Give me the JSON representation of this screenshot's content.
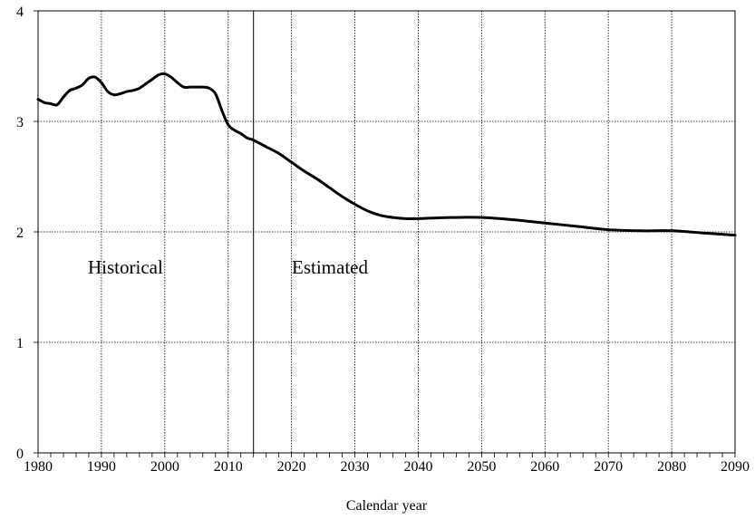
{
  "chart_data": {
    "type": "line",
    "xlabel": "Calendar year",
    "ylabel": "",
    "title": "",
    "xlim": [
      1980,
      2090
    ],
    "ylim": [
      0,
      4
    ],
    "x_ticks": [
      "1980",
      "1990",
      "2000",
      "2010",
      "2020",
      "2030",
      "2040",
      "2050",
      "2060",
      "2070",
      "2080",
      "2090"
    ],
    "y_ticks": [
      "0",
      "1",
      "2",
      "3",
      "4"
    ],
    "grid": true,
    "divider_year": 2014,
    "annotations": {
      "historical": "Historical",
      "estimated": "Estimated"
    },
    "series": [
      {
        "color": "#000000",
        "x": [
          1980,
          1981,
          1982,
          1983,
          1984,
          1985,
          1986,
          1987,
          1988,
          1989,
          1990,
          1991,
          1992,
          1993,
          1994,
          1995,
          1996,
          1997,
          1998,
          1999,
          2000,
          2001,
          2002,
          2003,
          2004,
          2005,
          2006,
          2007,
          2008,
          2009,
          2010,
          2011,
          2012,
          2013,
          2014,
          2016,
          2018,
          2020,
          2022,
          2024,
          2026,
          2028,
          2030,
          2032,
          2034,
          2036,
          2038,
          2040,
          2045,
          2050,
          2055,
          2060,
          2065,
          2070,
          2075,
          2080,
          2085,
          2090
        ],
        "y": [
          3.2,
          3.17,
          3.16,
          3.15,
          3.22,
          3.28,
          3.3,
          3.33,
          3.39,
          3.4,
          3.35,
          3.27,
          3.24,
          3.25,
          3.27,
          3.28,
          3.3,
          3.34,
          3.38,
          3.42,
          3.43,
          3.4,
          3.35,
          3.31,
          3.31,
          3.31,
          3.31,
          3.3,
          3.25,
          3.1,
          2.97,
          2.92,
          2.89,
          2.85,
          2.83,
          2.77,
          2.71,
          2.63,
          2.55,
          2.48,
          2.4,
          2.32,
          2.25,
          2.19,
          2.15,
          2.13,
          2.12,
          2.12,
          2.13,
          2.13,
          2.11,
          2.08,
          2.05,
          2.02,
          2.01,
          2.01,
          1.99,
          1.97
        ]
      }
    ]
  }
}
